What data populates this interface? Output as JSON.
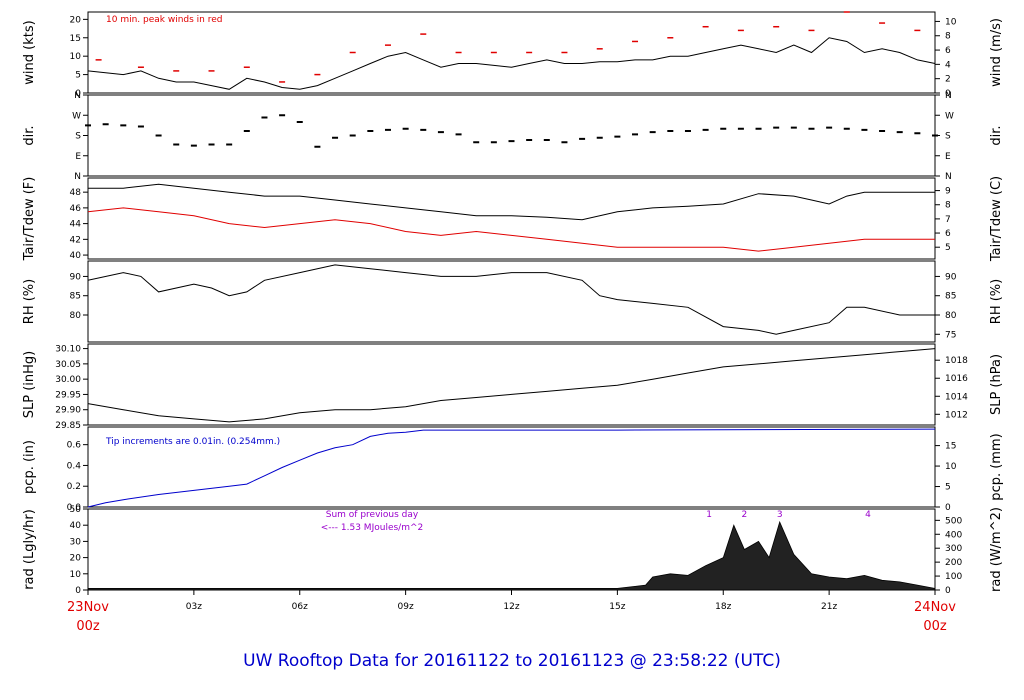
{
  "title": "UW Rooftop Data for 20161122  to  20161123 @ 23:58:22  (UTC)",
  "x_axis": {
    "start_label_top": "23Nov",
    "start_label_bottom": "00z",
    "end_label_top": "24Nov",
    "end_label_bottom": "00z",
    "hour_ticks": [
      "03z",
      "06z",
      "09z",
      "12z",
      "15z",
      "18z",
      "21z"
    ],
    "hour_values": [
      3,
      6,
      9,
      12,
      15,
      18,
      21
    ],
    "range_hours": [
      0,
      24
    ]
  },
  "colors": {
    "primary": "#000000",
    "dewpoint": "#e00000",
    "peak": "#e00000",
    "precip": "#0000cc",
    "note_purple": "#9900cc",
    "title": "#0000cc",
    "date_label": "#e00000"
  },
  "chart_data": [
    {
      "type": "line",
      "id": "wind",
      "ylabel": "wind (kts)",
      "ylabel_right": "wind (m/s)",
      "annotation": "10 min. peak winds in red",
      "ylim": [
        0,
        22
      ],
      "yticks": [
        "0",
        "5",
        "10",
        "15",
        "20"
      ],
      "ytick_values": [
        0,
        5,
        10,
        15,
        20
      ],
      "yticks_right": [
        "0",
        "2",
        "4",
        "6",
        "8",
        "10"
      ],
      "yticks_right_values": [
        0,
        3.89,
        7.78,
        11.66,
        15.55,
        19.44
      ],
      "series": [
        {
          "x": [
            0,
            0.5,
            1,
            1.5,
            2,
            2.5,
            3,
            3.5,
            4,
            4.5,
            5,
            5.5,
            6,
            6.5,
            7,
            7.5,
            8,
            8.5,
            9,
            9.5,
            10,
            10.5,
            11,
            11.5,
            12,
            12.5,
            13,
            13.5,
            14,
            14.5,
            15,
            15.5,
            16,
            16.5,
            17,
            17.5,
            18,
            18.5,
            19,
            19.5,
            20,
            20.5,
            21,
            21.5,
            22,
            22.5,
            23,
            23.5,
            24
          ],
          "values": [
            6,
            5.5,
            5,
            6,
            4,
            3,
            3,
            2,
            1,
            4,
            3,
            1.5,
            1,
            2,
            4,
            6,
            8,
            10,
            11,
            9,
            7,
            8,
            8,
            7.5,
            7,
            8,
            9,
            8,
            8,
            8.5,
            8.5,
            9,
            9,
            10,
            10,
            11,
            12,
            13,
            12,
            11,
            13,
            11,
            15,
            14,
            11,
            12,
            11,
            9,
            8
          ]
        },
        {
          "x": [
            0.3,
            1.5,
            2.5,
            3.5,
            4.5,
            5.5,
            6.5,
            7.5,
            8.5,
            9.5,
            10.5,
            11.5,
            12.5,
            13.5,
            14.5,
            15.5,
            16.5,
            17.5,
            18.5,
            19.5,
            20.5,
            21.5,
            22.5,
            23.5
          ],
          "values": [
            9,
            7,
            6,
            6,
            7,
            3,
            5,
            11,
            13,
            16,
            11,
            11,
            11,
            11,
            12,
            14,
            15,
            18,
            17,
            18,
            17,
            22,
            19,
            17
          ]
        }
      ]
    },
    {
      "type": "scatter",
      "id": "dir",
      "ylabel": "dir.",
      "ylabel_right": "dir.",
      "ylim": [
        0,
        360
      ],
      "yticks": [
        "N",
        "E",
        "S",
        "W",
        "N"
      ],
      "ytick_values": [
        0,
        90,
        180,
        270,
        360
      ],
      "series": [
        {
          "x": [
            0,
            0.5,
            1,
            1.5,
            2,
            2.5,
            3,
            3.5,
            4,
            4.5,
            5,
            5.5,
            6,
            6.5,
            7,
            7.5,
            8,
            8.5,
            9,
            9.5,
            10,
            10.5,
            11,
            11.5,
            12,
            12.5,
            13,
            13.5,
            14,
            14.5,
            15,
            15.5,
            16,
            16.5,
            17,
            17.5,
            18,
            18.5,
            19,
            19.5,
            20,
            20.5,
            21,
            21.5,
            22,
            22.5,
            23,
            23.5,
            24
          ],
          "values": [
            225,
            230,
            225,
            220,
            180,
            140,
            135,
            140,
            140,
            200,
            260,
            270,
            240,
            130,
            170,
            180,
            200,
            205,
            210,
            205,
            195,
            185,
            150,
            150,
            155,
            160,
            160,
            150,
            165,
            170,
            175,
            185,
            195,
            200,
            200,
            205,
            210,
            210,
            210,
            215,
            215,
            210,
            215,
            210,
            205,
            200,
            195,
            190,
            180
          ]
        }
      ]
    },
    {
      "type": "line",
      "id": "temp",
      "ylabel": "Tair/Tdew (F)",
      "ylabel_right": "Tair/Tdew (C)",
      "ylim": [
        39.5,
        49.8
      ],
      "yticks": [
        "40",
        "42",
        "44",
        "46",
        "48"
      ],
      "ytick_values": [
        40,
        42,
        44,
        46,
        48
      ],
      "yticks_right": [
        "5",
        "6",
        "7",
        "8",
        "9"
      ],
      "yticks_right_values": [
        41,
        42.8,
        44.6,
        46.4,
        48.2
      ],
      "series": [
        {
          "name": "Tair",
          "x": [
            0,
            1,
            2,
            3,
            4,
            5,
            6,
            7,
            8,
            9,
            10,
            11,
            12,
            13,
            14,
            15,
            16,
            17,
            18,
            19,
            20,
            20.5,
            21,
            21.5,
            22,
            23,
            24
          ],
          "values": [
            48.5,
            48.5,
            49,
            48.5,
            48,
            47.5,
            47.5,
            47,
            46.5,
            46,
            45.5,
            45,
            45,
            44.8,
            44.5,
            45.5,
            46,
            46.2,
            46.5,
            47.8,
            47.5,
            47,
            46.5,
            47.5,
            48,
            48,
            48
          ]
        },
        {
          "name": "Tdew",
          "x": [
            0,
            1,
            2,
            3,
            4,
            5,
            6,
            7,
            8,
            9,
            10,
            11,
            12,
            13,
            14,
            15,
            16,
            17,
            18,
            19,
            20,
            21,
            22,
            23,
            24
          ],
          "values": [
            45.5,
            46,
            45.5,
            45,
            44,
            43.5,
            44,
            44.5,
            44,
            43,
            42.5,
            43,
            42.5,
            42,
            41.5,
            41,
            41,
            41,
            41,
            40.5,
            41,
            41.5,
            42,
            42,
            42
          ]
        }
      ]
    },
    {
      "type": "line",
      "id": "rh",
      "ylabel": "RH (%)",
      "ylabel_right": "RH (%)",
      "ylim": [
        73,
        94
      ],
      "yticks": [
        "80",
        "85",
        "90"
      ],
      "ytick_values": [
        80,
        85,
        90
      ],
      "yticks_right": [
        "75",
        "80",
        "85",
        "90"
      ],
      "yticks_right_values": [
        75,
        80,
        85,
        90
      ],
      "series": [
        {
          "x": [
            0,
            1,
            1.5,
            2,
            3,
            3.5,
            4,
            4.5,
            5,
            6,
            7,
            8,
            9,
            10,
            11,
            12,
            13,
            14,
            14.5,
            15,
            16,
            17,
            18,
            19,
            19.5,
            20,
            21,
            21.5,
            22,
            23,
            24
          ],
          "values": [
            89,
            91,
            90,
            86,
            88,
            87,
            85,
            86,
            89,
            91,
            93,
            92,
            91,
            90,
            90,
            91,
            91,
            89,
            85,
            84,
            83,
            82,
            77,
            76,
            75,
            76,
            78,
            82,
            82,
            80,
            80
          ]
        }
      ]
    },
    {
      "type": "line",
      "id": "slp",
      "ylabel": "SLP (inHg)",
      "ylabel_right": "SLP (hPa)",
      "ylim": [
        29.85,
        30.115
      ],
      "yticks": [
        "29.85",
        "29.90",
        "29.95",
        "30.00",
        "30.05",
        "30.10"
      ],
      "ytick_values": [
        29.85,
        29.9,
        29.95,
        30.0,
        30.05,
        30.1
      ],
      "yticks_right": [
        "1012",
        "1014",
        "1016",
        "1018"
      ],
      "yticks_right_values": [
        29.885,
        29.944,
        30.003,
        30.062
      ],
      "series": [
        {
          "x": [
            0,
            1,
            2,
            3,
            4,
            5,
            6,
            7,
            8,
            9,
            10,
            11,
            12,
            13,
            14,
            15,
            16,
            17,
            18,
            19,
            20,
            21,
            22,
            23,
            24
          ],
          "values": [
            29.92,
            29.9,
            29.88,
            29.87,
            29.86,
            29.87,
            29.89,
            29.9,
            29.9,
            29.91,
            29.93,
            29.94,
            29.95,
            29.96,
            29.97,
            29.98,
            30.0,
            30.02,
            30.04,
            30.05,
            30.06,
            30.07,
            30.08,
            30.09,
            30.1
          ]
        }
      ]
    },
    {
      "type": "line",
      "id": "pcp",
      "ylabel": "pcp. (in)",
      "ylabel_right": "pcp. (mm)",
      "annotation": "Tip increments are 0.01in. (0.254mm.)",
      "ylim": [
        0,
        0.77
      ],
      "yticks": [
        "0.0",
        "0.2",
        "0.4",
        "0.6"
      ],
      "ytick_values": [
        0.0,
        0.2,
        0.4,
        0.6
      ],
      "yticks_right": [
        "0",
        "5",
        "10",
        "15"
      ],
      "yticks_right_values": [
        0,
        0.197,
        0.394,
        0.591
      ],
      "series": [
        {
          "x": [
            0,
            0.5,
            1,
            2,
            3,
            4,
            4.5,
            5,
            5.5,
            6,
            6.5,
            7,
            7.5,
            8,
            8.5,
            9,
            9.5,
            10,
            15,
            24
          ],
          "values": [
            0.0,
            0.04,
            0.07,
            0.12,
            0.16,
            0.2,
            0.22,
            0.3,
            0.38,
            0.45,
            0.52,
            0.57,
            0.6,
            0.68,
            0.71,
            0.72,
            0.74,
            0.74,
            0.74,
            0.75
          ]
        }
      ]
    },
    {
      "type": "area",
      "id": "rad",
      "ylabel": "rad (Lgly/hr)",
      "ylabel_right": "rad (W/m^2)",
      "annotation_line1": "Sum of previous day",
      "annotation_line2": "<--- 1.53 MJoules/m^2",
      "markers": [
        "1",
        "2",
        "3",
        "4"
      ],
      "marker_hours": [
        17.6,
        18.6,
        19.6,
        22.1
      ],
      "ylim": [
        0,
        50
      ],
      "yticks": [
        "0",
        "10",
        "20",
        "30",
        "40",
        "50"
      ],
      "ytick_values": [
        0,
        10,
        20,
        30,
        40,
        50
      ],
      "yticks_right": [
        "0",
        "100",
        "200",
        "300",
        "400",
        "500"
      ],
      "yticks_right_values": [
        0,
        8.6,
        17.2,
        25.8,
        34.4,
        43.0
      ],
      "series": [
        {
          "x": [
            0,
            0.8,
            15,
            15.8,
            16,
            16.5,
            17,
            17.5,
            18,
            18.3,
            18.6,
            19,
            19.3,
            19.6,
            20,
            20.5,
            21,
            21.5,
            22,
            22.5,
            23,
            23.5,
            24
          ],
          "values": [
            1,
            1,
            1,
            3,
            8,
            10,
            9,
            15,
            20,
            40,
            25,
            30,
            20,
            42,
            22,
            10,
            8,
            7,
            9,
            6,
            5,
            3,
            1
          ]
        }
      ]
    }
  ]
}
